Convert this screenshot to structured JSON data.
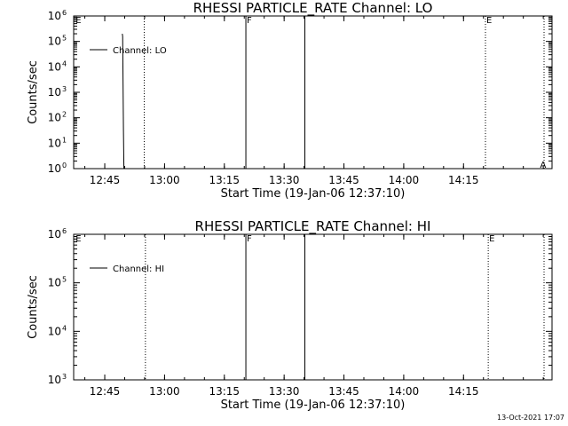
{
  "chart_data": [
    {
      "type": "line",
      "title": "RHESSI PARTICLE_RATE Channel: LO",
      "xlabel": "Start Time (19-Jan-06 12:37:10)",
      "ylabel": "Counts/sec",
      "x_ticks": [
        "12:45",
        "13:00",
        "13:15",
        "13:30",
        "13:45",
        "14:00",
        "14:15"
      ],
      "y_ticks": [
        {
          "base": "10",
          "exp": "0"
        },
        {
          "base": "10",
          "exp": "1"
        },
        {
          "base": "10",
          "exp": "2"
        },
        {
          "base": "10",
          "exp": "3"
        },
        {
          "base": "10",
          "exp": "4"
        },
        {
          "base": "10",
          "exp": "5"
        },
        {
          "base": "10",
          "exp": "6"
        }
      ],
      "ylim": [
        0,
        6
      ],
      "series": [
        {
          "name": "Channel: LO",
          "points": [
            [
              12.2,
              5.3
            ],
            [
              12.3,
              5.2
            ],
            [
              12.35,
              4.0
            ],
            [
              12.5,
              1.5
            ],
            [
              12.6,
              0.0
            ]
          ]
        }
      ],
      "markers": [
        {
          "type": "dotted",
          "minute": 17.7
        },
        {
          "type": "solid",
          "minute": 43.2,
          "label": "F"
        },
        {
          "type": "solid",
          "minute": 58.0
        },
        {
          "type": "dotted",
          "minute": 103.3,
          "label": "E"
        },
        {
          "type": "dotted",
          "minute": 118.0
        }
      ],
      "edge_labels": [
        {
          "text": "E",
          "minute": 0.5
        },
        {
          "text": "A",
          "minute": 117.0
        }
      ]
    },
    {
      "type": "line",
      "title": "RHESSI PARTICLE_RATE Channel: HI",
      "xlabel": "Start Time (19-Jan-06 12:37:10)",
      "ylabel": "Counts/sec",
      "x_ticks": [
        "12:45",
        "13:00",
        "13:15",
        "13:30",
        "13:45",
        "14:00",
        "14:15"
      ],
      "y_ticks": [
        {
          "base": "10",
          "exp": "3"
        },
        {
          "base": "10",
          "exp": "4"
        },
        {
          "base": "10",
          "exp": "5"
        },
        {
          "base": "10",
          "exp": "6"
        }
      ],
      "ylim": [
        3,
        6
      ],
      "series": [
        {
          "name": "Channel: HI",
          "points": []
        }
      ],
      "markers": [
        {
          "type": "dotted",
          "minute": 18.0
        },
        {
          "type": "solid",
          "minute": 43.2,
          "label": "F"
        },
        {
          "type": "solid",
          "minute": 58.0
        },
        {
          "type": "dotted",
          "minute": 104.0,
          "label": "E"
        },
        {
          "type": "dotted",
          "minute": 118.0
        }
      ],
      "edge_labels": [
        {
          "text": "E",
          "minute": 0.5
        }
      ]
    }
  ],
  "footer": {
    "timestamp": "13-Oct-2021 17:07"
  }
}
